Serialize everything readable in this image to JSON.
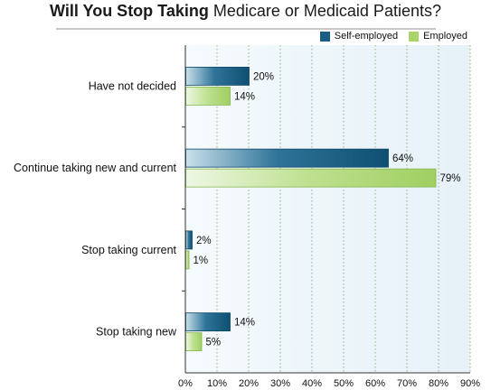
{
  "chart_data": {
    "type": "bar",
    "orientation": "horizontal",
    "title_bold": "Will You Stop Taking",
    "title_rest": " Medicare or Medicaid Patients?",
    "categories": [
      "Have not decided",
      "Continue taking new and current",
      "Stop taking current",
      "Stop taking new"
    ],
    "series": [
      {
        "name": "Self-employed",
        "values": [
          20,
          64,
          2,
          14
        ],
        "labels": [
          "20%",
          "64%",
          "2%",
          "14%"
        ],
        "color": "#1b5e84"
      },
      {
        "name": "Employed",
        "values": [
          14,
          79,
          1,
          5
        ],
        "labels": [
          "14%",
          "79%",
          "1%",
          "5%"
        ],
        "color": "#a9d46b"
      }
    ],
    "xlim": [
      0,
      90
    ],
    "x_ticks": [
      "0%",
      "10%",
      "20%",
      "30%",
      "40%",
      "50%",
      "60%",
      "70%",
      "80%",
      "90%"
    ],
    "grid": true,
    "legend_position": "top-right"
  }
}
